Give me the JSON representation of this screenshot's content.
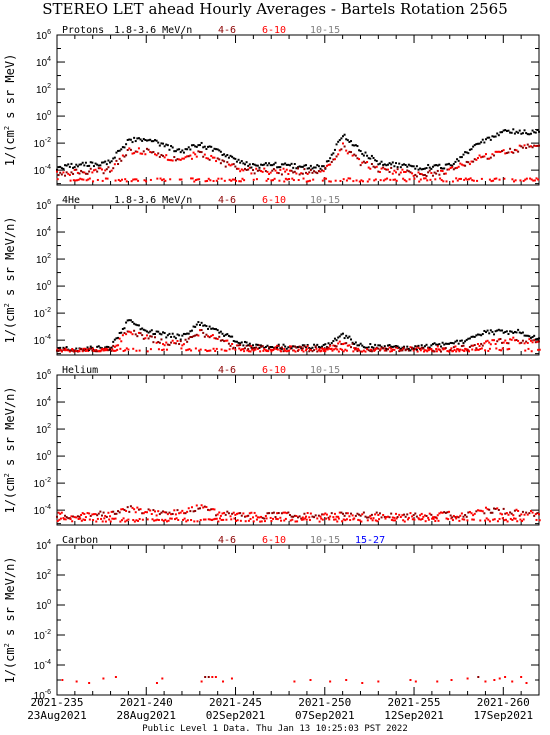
{
  "title": "STEREO LET ahead Hourly Averages - Bartels Rotation 2565",
  "footer": "Public Level 1 Data. Thu Jan 13 10:25:03 PST 2022",
  "colors": {
    "4-6": "#8b0000",
    "6-10": "#ff0000",
    "10-15": "#808080",
    "15-27": "#0000ff",
    "black_series": "#000000"
  },
  "chart_data": [
    {
      "type": "scatter",
      "panel_label": "Protons",
      "energy_range": "1.8-3.6 MeV/n",
      "legend": [
        "4-6",
        "6-10",
        "10-15"
      ],
      "ylabel": "1/(cm2 s sr MeV)",
      "ylog": true,
      "yticks_exp": [
        -4,
        -2,
        0,
        2,
        4,
        6
      ],
      "ylim_exp": [
        -5.1,
        6
      ],
      "xlim": [
        235,
        262
      ],
      "series_approx": {
        "black": [
          [
            235,
            -3.8
          ],
          [
            236.5,
            -3.6
          ],
          [
            238,
            -3.4
          ],
          [
            239,
            -1.8
          ],
          [
            240,
            -1.7
          ],
          [
            241,
            -2.2
          ],
          [
            242,
            -2.6
          ],
          [
            243,
            -2.1
          ],
          [
            244,
            -2.6
          ],
          [
            245,
            -3.2
          ],
          [
            246,
            -3.7
          ],
          [
            247,
            -3.6
          ],
          [
            248,
            -3.7
          ],
          [
            250,
            -3.8
          ],
          [
            251,
            -1.3
          ],
          [
            252,
            -2.6
          ],
          [
            253,
            -3.4
          ],
          [
            255,
            -3.8
          ],
          [
            257,
            -3.7
          ],
          [
            258,
            -2.6
          ],
          [
            259,
            -1.8
          ],
          [
            260,
            -1.1
          ],
          [
            262,
            -1.2
          ]
        ],
        "red": [
          [
            235,
            -4.3
          ],
          [
            236.5,
            -4.1
          ],
          [
            238,
            -4
          ],
          [
            239,
            -2.6
          ],
          [
            240,
            -2.6
          ],
          [
            241,
            -3
          ],
          [
            242,
            -3.3
          ],
          [
            243,
            -2.7
          ],
          [
            244,
            -3.3
          ],
          [
            245,
            -3.8
          ],
          [
            246,
            -4.1
          ],
          [
            248,
            -4.1
          ],
          [
            250,
            -4.1
          ],
          [
            251,
            -2.2
          ],
          [
            252,
            -3.4
          ],
          [
            253,
            -3.9
          ],
          [
            255,
            -4.3
          ],
          [
            257,
            -4.1
          ],
          [
            258,
            -3.4
          ],
          [
            259,
            -3
          ],
          [
            260,
            -2.7
          ],
          [
            262,
            -2
          ]
        ]
      }
    },
    {
      "type": "scatter",
      "panel_label": "4He",
      "energy_range": "1.8-3.6 MeV/n",
      "legend": [
        "4-6",
        "6-10",
        "10-15"
      ],
      "ylabel": "1/(cm2 s sr MeV/n)",
      "ylog": true,
      "yticks_exp": [
        -4,
        -2,
        0,
        2,
        4,
        6
      ],
      "ylim_exp": [
        -5.1,
        6
      ],
      "xlim": [
        235,
        262
      ],
      "series_approx": {
        "black": [
          [
            235,
            -4.7
          ],
          [
            238,
            -4.6
          ],
          [
            239,
            -2.6
          ],
          [
            240,
            -3.3
          ],
          [
            241,
            -3.6
          ],
          [
            242,
            -3.8
          ],
          [
            243,
            -2.7
          ],
          [
            244,
            -3.4
          ],
          [
            245,
            -4
          ],
          [
            246,
            -4.5
          ],
          [
            250,
            -4.5
          ],
          [
            251,
            -3.6
          ],
          [
            252,
            -4.4
          ],
          [
            255,
            -4.6
          ],
          [
            258,
            -4
          ],
          [
            259,
            -3.4
          ],
          [
            261,
            -3.4
          ],
          [
            262,
            -4
          ]
        ],
        "red": [
          [
            235,
            -4.9
          ],
          [
            238,
            -4.8
          ],
          [
            239,
            -3.3
          ],
          [
            240,
            -3.8
          ],
          [
            241,
            -4.2
          ],
          [
            242,
            -4.2
          ],
          [
            243,
            -3.4
          ],
          [
            244,
            -3.9
          ],
          [
            245,
            -4.5
          ],
          [
            250,
            -4.7
          ],
          [
            251,
            -4.1
          ],
          [
            252,
            -4.8
          ],
          [
            258,
            -4.6
          ],
          [
            260,
            -4
          ],
          [
            262,
            -4.1
          ]
        ]
      }
    },
    {
      "type": "scatter",
      "panel_label": "Helium",
      "energy_range": "",
      "legend": [
        "4-6",
        "6-10",
        "10-15"
      ],
      "ylabel": "1/(cm2 s sr MeV/n)",
      "ylog": true,
      "yticks_exp": [
        -4,
        -2,
        0,
        2,
        4,
        6
      ],
      "ylim_exp": [
        -5.1,
        6
      ],
      "xlim": [
        235,
        262
      ],
      "series_approx": {
        "red": [
          [
            235,
            -4.4
          ],
          [
            238,
            -4.3
          ],
          [
            239,
            -3.9
          ],
          [
            240,
            -4.1
          ],
          [
            241,
            -4.3
          ],
          [
            243,
            -3.8
          ],
          [
            244,
            -4.2
          ],
          [
            246,
            -4.4
          ],
          [
            250,
            -4.4
          ],
          [
            255,
            -4.4
          ],
          [
            258,
            -4.3
          ],
          [
            259,
            -4
          ],
          [
            262,
            -4.3
          ]
        ]
      }
    },
    {
      "type": "scatter",
      "panel_label": "Carbon",
      "energy_range": "",
      "legend": [
        "4-6",
        "6-10",
        "10-15",
        "15-27"
      ],
      "ylabel": "1/(cm2 s sr MeV/n)",
      "ylog": true,
      "yticks_exp": [
        -6,
        -4,
        -2,
        0,
        2,
        4
      ],
      "ylim_exp": [
        -6,
        4
      ],
      "xlim": [
        235,
        262
      ],
      "points": [
        [
          235.3,
          -5,
          "red"
        ],
        [
          236.1,
          -5.1,
          "red"
        ],
        [
          236.8,
          -5.2,
          "red"
        ],
        [
          237.6,
          -4.9,
          "red"
        ],
        [
          238.3,
          -4.8,
          "red"
        ],
        [
          240.6,
          -5.2,
          "red"
        ],
        [
          240.9,
          -4.9,
          "red"
        ],
        [
          243.1,
          -5.1,
          "red"
        ],
        [
          243.3,
          -4.8,
          "dark"
        ],
        [
          243.5,
          -4.8,
          "dark"
        ],
        [
          243.7,
          -4.8,
          "red"
        ],
        [
          243.9,
          -4.8,
          "red"
        ],
        [
          244.3,
          -5.1,
          "red"
        ],
        [
          244.8,
          -4.9,
          "red"
        ],
        [
          248.3,
          -5.1,
          "red"
        ],
        [
          249.2,
          -5,
          "red"
        ],
        [
          250.3,
          -5.1,
          "red"
        ],
        [
          251.2,
          -5,
          "red"
        ],
        [
          252.1,
          -5.2,
          "red"
        ],
        [
          253.0,
          -5.1,
          "red"
        ],
        [
          254.8,
          -5.0,
          "red"
        ],
        [
          255.1,
          -5.1,
          "red"
        ],
        [
          256.3,
          -5.1,
          "red"
        ],
        [
          257.1,
          -5.0,
          "red"
        ],
        [
          258.0,
          -4.9,
          "red"
        ],
        [
          258.6,
          -4.8,
          "dark"
        ],
        [
          259.0,
          -5.1,
          "red"
        ],
        [
          259.5,
          -5.0,
          "red"
        ],
        [
          259.8,
          -4.9,
          "red"
        ],
        [
          260.1,
          -4.8,
          "red"
        ],
        [
          260.5,
          -5.1,
          "red"
        ],
        [
          261.0,
          -4.8,
          "red"
        ],
        [
          261.3,
          -5.2,
          "red"
        ]
      ]
    }
  ],
  "xaxis": {
    "ticks": [
      {
        "doy": 235,
        "top": "2021-235",
        "bottom": "23Aug2021"
      },
      {
        "doy": 240,
        "top": "2021-240",
        "bottom": "28Aug2021"
      },
      {
        "doy": 245,
        "top": "2021-245",
        "bottom": "02Sep2021"
      },
      {
        "doy": 250,
        "top": "2021-250",
        "bottom": "07Sep2021"
      },
      {
        "doy": 255,
        "top": "2021-255",
        "bottom": "12Sep2021"
      },
      {
        "doy": 260,
        "top": "2021-260",
        "bottom": "17Sep2021"
      }
    ]
  }
}
